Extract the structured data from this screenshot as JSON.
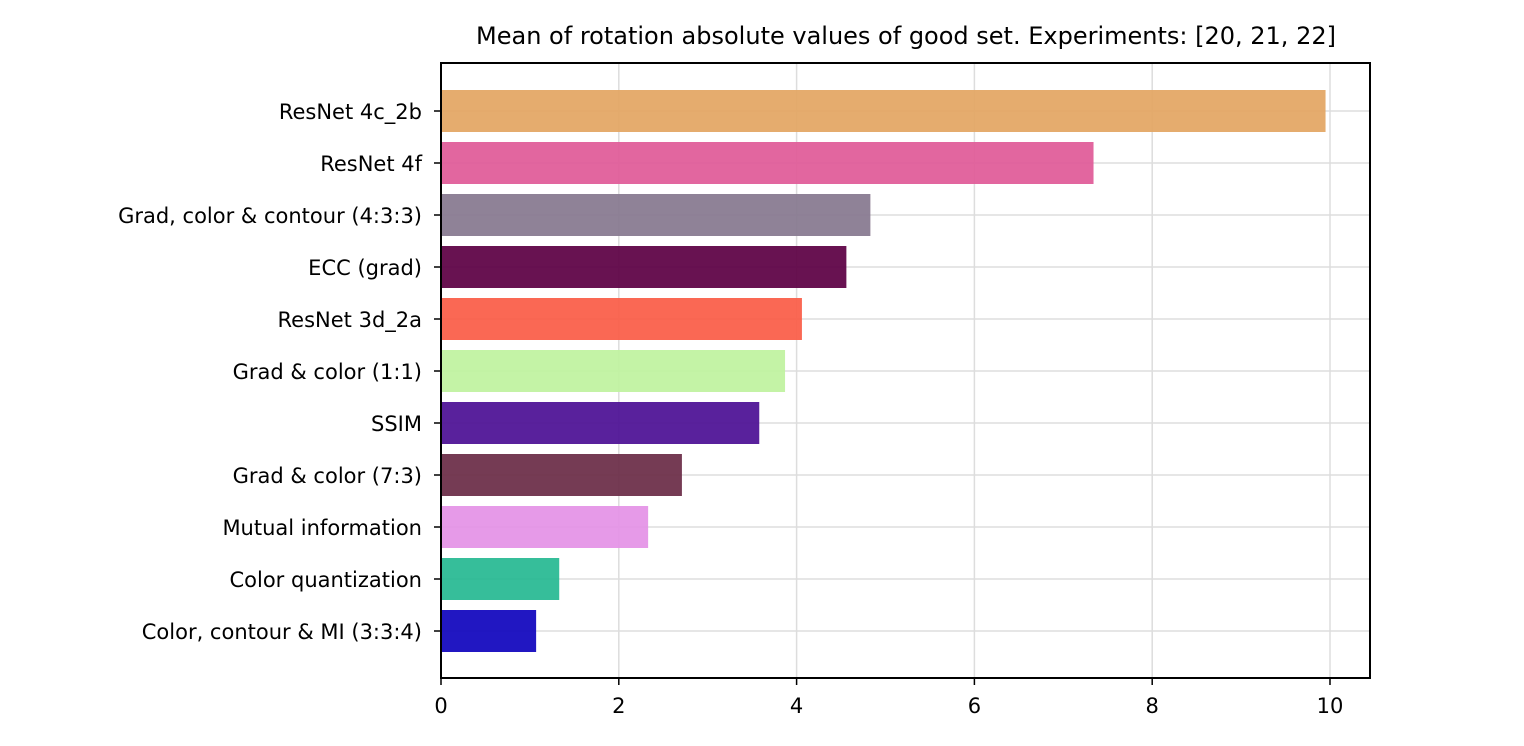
{
  "chart_data": {
    "type": "bar",
    "orientation": "horizontal",
    "title": "Mean of rotation absolute values of good set. Experiments: [20, 21, 22]",
    "xlabel": "",
    "ylabel": "",
    "xlim": [
      0,
      10.45
    ],
    "xticks": [
      0,
      2,
      4,
      6,
      8,
      10
    ],
    "grid": true,
    "categories": [
      "ResNet 4c_2b",
      "ResNet 4f",
      "Grad, color & contour (4:3:3)",
      "ECC (grad)",
      "ResNet 3d_2a",
      "Grad & color (1:1)",
      "SSIM",
      "Grad & color (7:3)",
      "Mutual information",
      "Color quantization",
      "Color, contour & MI (3:3:4)"
    ],
    "values": [
      9.95,
      7.34,
      4.83,
      4.56,
      4.06,
      3.87,
      3.58,
      2.71,
      2.33,
      1.33,
      1.07
    ],
    "colors": [
      "#e3a663",
      "#e05a98",
      "#87798f",
      "#5d0044",
      "#fa5d47",
      "#c0f29f",
      "#4c1094",
      "#6b2c47",
      "#e492e6",
      "#27b992",
      "#1005bd"
    ]
  }
}
